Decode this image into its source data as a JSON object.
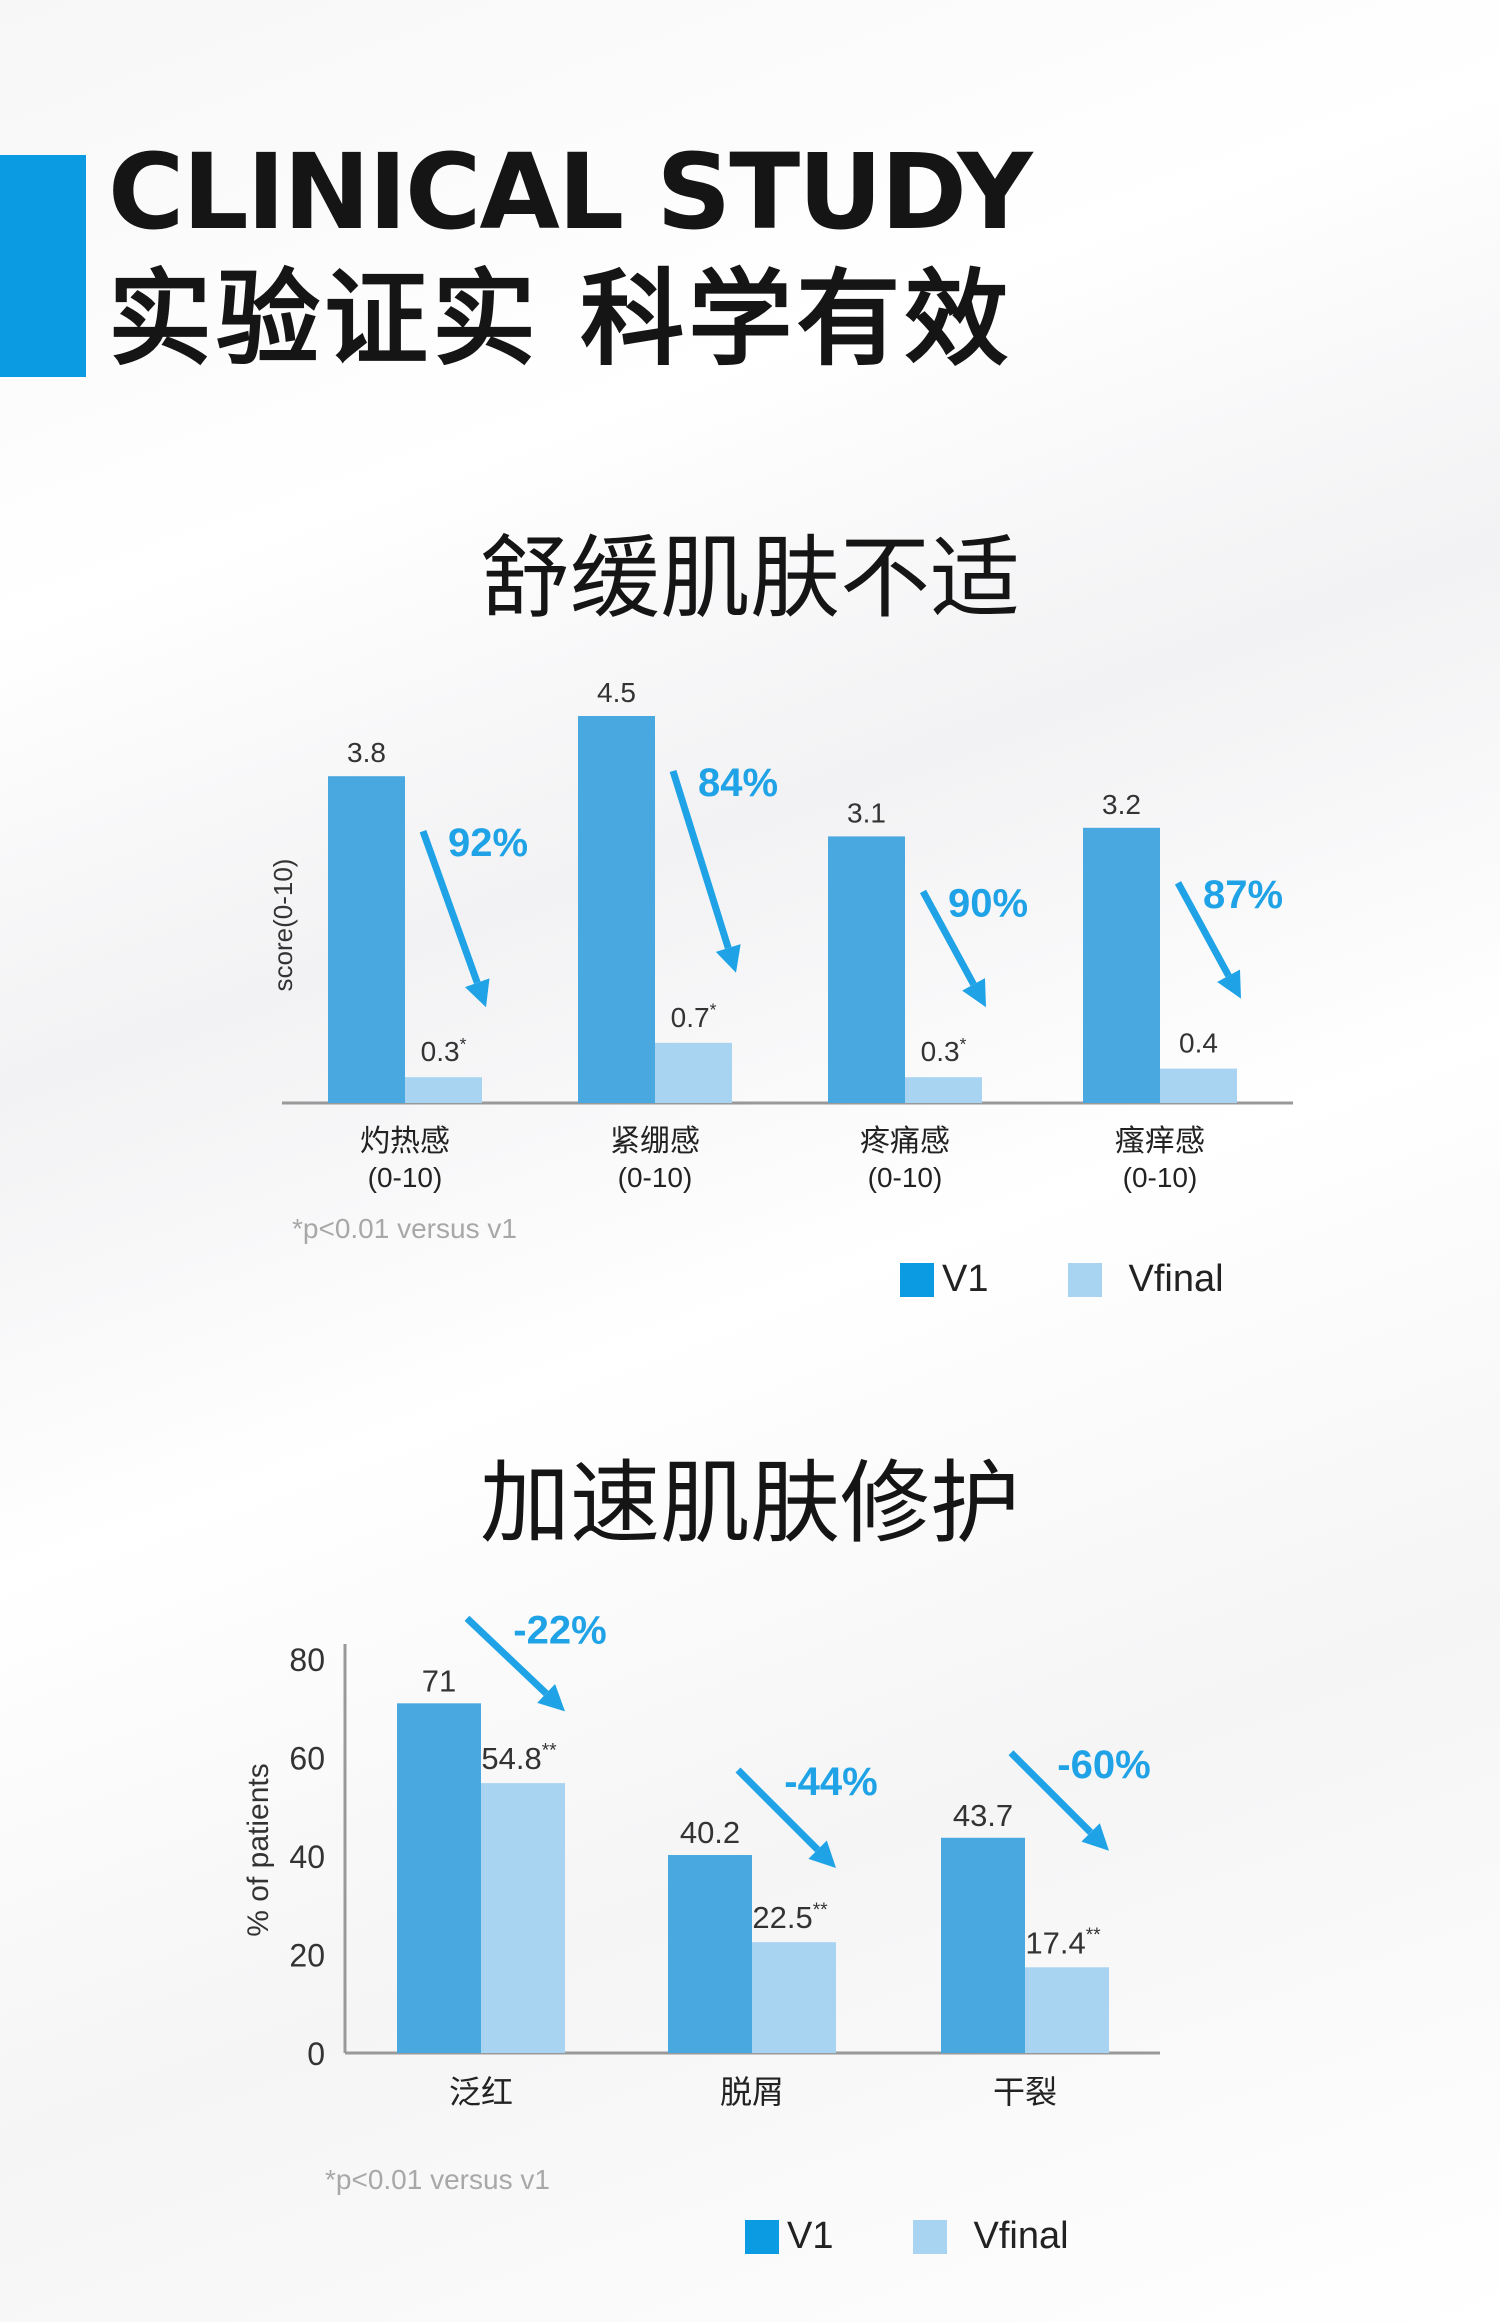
{
  "header": {
    "title_en": "CLINICAL STUDY",
    "title_cn": "实验证实 科学有效"
  },
  "colors": {
    "accent": "#0a9be3",
    "v1": "#4aa8e0",
    "vfinal": "#a8d4f2",
    "arrow": "#1fa3e6"
  },
  "section1": {
    "title": "舒缓肌肤不适",
    "footnote": "*p<0.01 versus v1",
    "legend": [
      "V1",
      "Vfinal"
    ]
  },
  "section2": {
    "title": "加速肌肤修护",
    "footnote": "*p<0.01 versus v1",
    "legend": [
      "V1",
      "Vfinal"
    ]
  },
  "chart_data": [
    {
      "type": "bar",
      "ylabel": "score(0-10)",
      "categories": [
        "灼热感\n(0-10)",
        "紧绷感\n(0-10)",
        "疼痛感\n(0-10)",
        "瘙痒感\n(0-10)"
      ],
      "series": [
        {
          "name": "V1",
          "values": [
            3.8,
            4.5,
            3.1,
            3.2
          ],
          "labels": [
            "3.8",
            "4.5",
            "3.1",
            "3.2"
          ]
        },
        {
          "name": "Vfinal",
          "values": [
            0.3,
            0.7,
            0.3,
            0.4
          ],
          "labels": [
            "0.3*",
            "0.7*",
            "0.3*",
            "0.4"
          ]
        }
      ],
      "annotations": [
        "92%",
        "84%",
        "90%",
        "87%"
      ],
      "ylim": [
        0,
        4.5
      ],
      "grid": false
    },
    {
      "type": "bar",
      "ylabel": "% of patients",
      "categories": [
        "泛红",
        "脱屑",
        "干裂"
      ],
      "yticks": [
        0,
        20,
        40,
        60,
        80
      ],
      "series": [
        {
          "name": "V1",
          "values": [
            71,
            40.2,
            43.7
          ],
          "labels": [
            "71",
            "40.2",
            "43.7"
          ]
        },
        {
          "name": "Vfinal",
          "values": [
            54.8,
            22.5,
            17.4
          ],
          "labels": [
            "54.8**",
            "22.5**",
            "17.4**"
          ]
        }
      ],
      "annotations": [
        "-22%",
        "-44%",
        "-60%"
      ],
      "ylim": [
        0,
        80
      ],
      "grid": false
    }
  ]
}
